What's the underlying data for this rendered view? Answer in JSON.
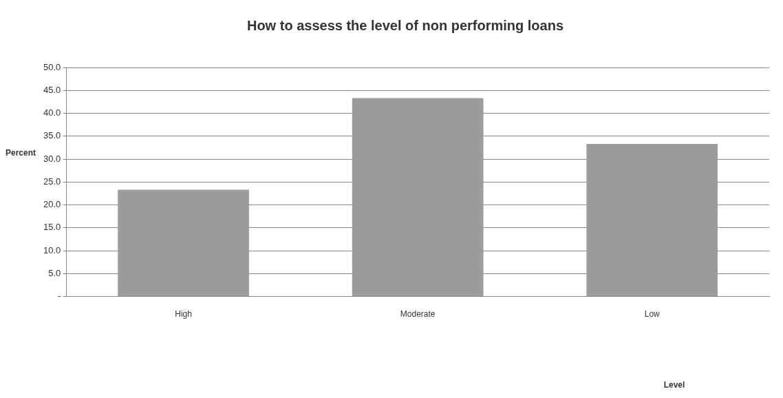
{
  "chart_data": {
    "type": "bar",
    "title": "How to assess the level of non performing loans",
    "annotations": [
      "Level"
    ],
    "ylabel": "Percent",
    "categories": [
      "High",
      "Moderate",
      "Low"
    ],
    "values": [
      23.3,
      43.3,
      33.3
    ],
    "color": "#9c9c9c",
    "ylim": [
      0,
      50
    ],
    "yticks": [
      {
        "value": 0,
        "label": "-"
      },
      {
        "value": 5,
        "label": "5.0"
      },
      {
        "value": 10,
        "label": "10.0"
      },
      {
        "value": 15,
        "label": "15.0"
      },
      {
        "value": 20,
        "label": "20.0"
      },
      {
        "value": 25,
        "label": "25.0"
      },
      {
        "value": 30,
        "label": "30.0"
      },
      {
        "value": 35,
        "label": "35.0"
      },
      {
        "value": 40,
        "label": "40.0"
      },
      {
        "value": 45,
        "label": "45.0"
      },
      {
        "value": 50,
        "label": "50.0"
      }
    ],
    "grid": "y",
    "legend": false
  }
}
